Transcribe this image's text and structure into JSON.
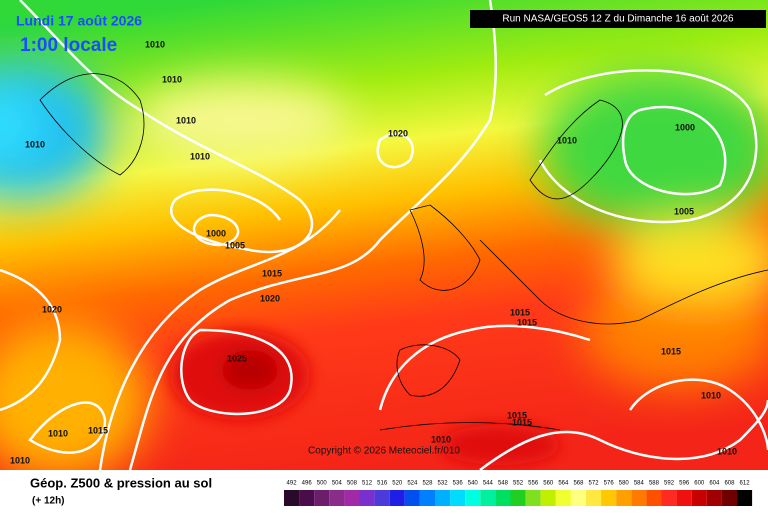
{
  "header": {
    "date": "Lundi 17 août 2026",
    "time": "1:00 locale",
    "run": "Run NASA/GEOS5 12 Z du Dimanche 16 août 2026"
  },
  "copyright": "Copyright © 2026 Meteociel.fr/010",
  "isobar_labels": [
    1010,
    1010,
    1010,
    1010,
    1010,
    1020,
    1000,
    1005,
    1015,
    1020,
    1020,
    1025,
    1010,
    1000,
    1005,
    1015,
    1015,
    1015,
    1010,
    1015,
    1015,
    1010,
    1010,
    1015,
    1010,
    1010
  ],
  "legend": {
    "title": "Géop. Z500 & pression au sol",
    "subtitle": "(+ 12h)",
    "labels": [
      492,
      496,
      500,
      504,
      508,
      512,
      516,
      520,
      524,
      528,
      532,
      536,
      540,
      544,
      548,
      552,
      556,
      560,
      564,
      568,
      572,
      576,
      580,
      584,
      588,
      592,
      596,
      600,
      604,
      608,
      612
    ],
    "colors": [
      "#2a0a2a",
      "#4b0c4b",
      "#6b1f6b",
      "#8a2c8a",
      "#a02aa8",
      "#7a2fcf",
      "#4b3bd8",
      "#1e1ee8",
      "#0050f0",
      "#0080ff",
      "#00b0ff",
      "#00dcff",
      "#00ffe0",
      "#00f0a0",
      "#00e060",
      "#20d020",
      "#80e020",
      "#c0f000",
      "#f0ff30",
      "#ffff80",
      "#ffe840",
      "#ffc800",
      "#ffa000",
      "#ff7a00",
      "#ff5000",
      "#ff2a20",
      "#f01010",
      "#c80000",
      "#a00000",
      "#700000",
      "#000000"
    ]
  }
}
